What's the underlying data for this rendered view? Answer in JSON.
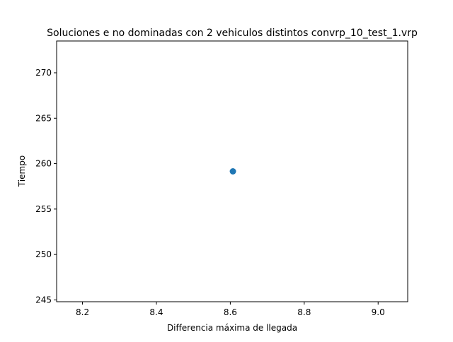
{
  "chart_data": {
    "type": "scatter",
    "title": "Soluciones e no dominadas con 2 vehiculos distintos convrp_10_test_1.vrp",
    "xlabel": "Differencia máxima de llegada",
    "ylabel": "Tiempo",
    "xlim": [
      8.13,
      9.08
    ],
    "ylim": [
      244.8,
      273.5
    ],
    "xticks": [
      8.2,
      8.4,
      8.6,
      8.8,
      9.0
    ],
    "yticks": [
      245,
      250,
      255,
      260,
      265,
      270
    ],
    "xtick_labels": [
      "8.2",
      "8.4",
      "8.6",
      "8.8",
      "9.0"
    ],
    "ytick_labels": [
      "245",
      "250",
      "255",
      "260",
      "265",
      "270"
    ],
    "grid": false,
    "series": [
      {
        "points": [
          {
            "x": 8.607,
            "y": 259.15
          }
        ]
      }
    ],
    "colors": {
      "marker": "#1f77b4",
      "axes": "#000000"
    }
  }
}
